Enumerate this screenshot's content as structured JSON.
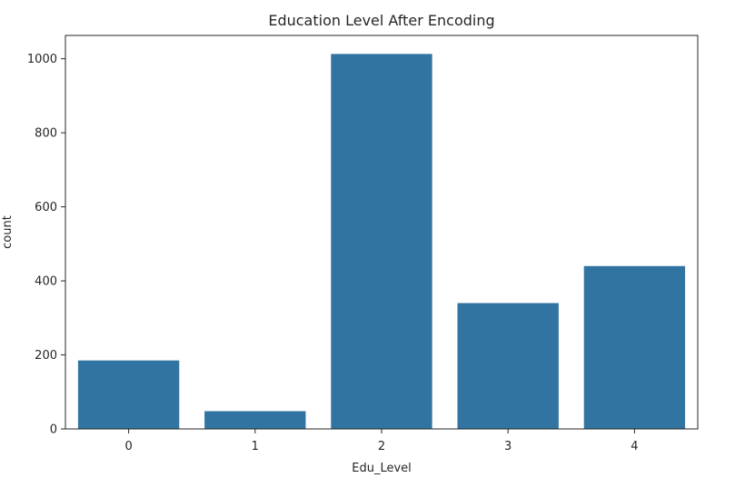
{
  "chart_data": {
    "type": "bar",
    "title": "Education Level After Encoding",
    "xlabel": "Edu_Level",
    "ylabel": "count",
    "categories": [
      "0",
      "1",
      "2",
      "3",
      "4"
    ],
    "values": [
      185,
      48,
      1013,
      340,
      440
    ],
    "ylim": [
      0,
      1063
    ],
    "yticks": [
      0,
      200,
      400,
      600,
      800,
      1000
    ],
    "bar_color": "#3274a1",
    "grid": false,
    "legend": "none"
  }
}
